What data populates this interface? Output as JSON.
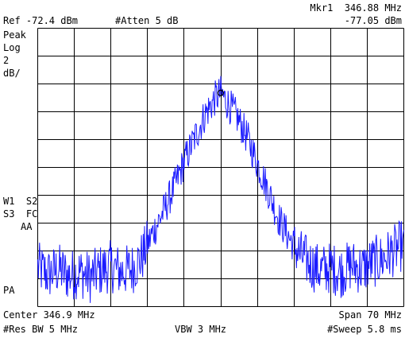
{
  "header": {
    "ref": "Ref -72.4 dBm",
    "atten": "#Atten 5 dB",
    "marker_label": "Mkr1  346.88 MHz",
    "marker_value": "-77.05 dBm"
  },
  "left_panel": {
    "detector": "Peak",
    "scale_type": "Log",
    "scale_value": "2",
    "scale_unit": "dB/",
    "w1s2": "W1  S2",
    "s3fc": "S3  FC",
    "aa": "AA",
    "pa": "PA"
  },
  "footer": {
    "center": "Center 346.9 MHz",
    "span": "Span 70 MHz",
    "res_bw": "#Res BW 5 MHz",
    "vbw": "VBW 3 MHz",
    "sweep": "#Sweep 5.8 ms"
  },
  "colors": {
    "trace": "#1a1aff",
    "grid": "#000000",
    "background": "#ffffff"
  },
  "chart_data": {
    "type": "line",
    "x_range_mhz": [
      311.9,
      381.9
    ],
    "y_range_dbm": [
      -92.4,
      -72.4
    ],
    "grid": {
      "divisions_x": 10,
      "divisions_y": 10,
      "on": true
    },
    "marker": {
      "id": 1,
      "x_mhz": 346.88,
      "y_dbm": -77.05
    },
    "series": [
      {
        "values": [
          [
            311.9,
            -89.6
          ],
          [
            313.9,
            -90.1
          ],
          [
            315.9,
            -89.7
          ],
          [
            317.9,
            -90.2
          ],
          [
            319.9,
            -89.9
          ],
          [
            321.9,
            -90.3
          ],
          [
            323.9,
            -89.8
          ],
          [
            325.9,
            -89.5
          ],
          [
            327.9,
            -89.9
          ],
          [
            329.9,
            -89.7
          ],
          [
            331.9,
            -88.8
          ],
          [
            333.9,
            -87.1
          ],
          [
            335.9,
            -85.6
          ],
          [
            337.9,
            -83.9
          ],
          [
            339.9,
            -82.0
          ],
          [
            341.9,
            -80.3
          ],
          [
            343.9,
            -78.6
          ],
          [
            345.9,
            -77.4
          ],
          [
            346.88,
            -77.05
          ],
          [
            347.9,
            -77.6
          ],
          [
            349.9,
            -78.7
          ],
          [
            351.9,
            -80.2
          ],
          [
            353.9,
            -82.1
          ],
          [
            355.9,
            -84.0
          ],
          [
            357.9,
            -86.0
          ],
          [
            359.9,
            -87.4
          ],
          [
            361.9,
            -88.6
          ],
          [
            363.9,
            -89.3
          ],
          [
            365.9,
            -89.8
          ],
          [
            367.9,
            -89.6
          ],
          [
            369.9,
            -89.9
          ],
          [
            371.9,
            -89.4
          ],
          [
            373.9,
            -89.7
          ],
          [
            375.9,
            -89.2
          ],
          [
            377.9,
            -89.0
          ],
          [
            379.9,
            -88.4
          ],
          [
            381.9,
            -87.9
          ]
        ]
      }
    ]
  }
}
